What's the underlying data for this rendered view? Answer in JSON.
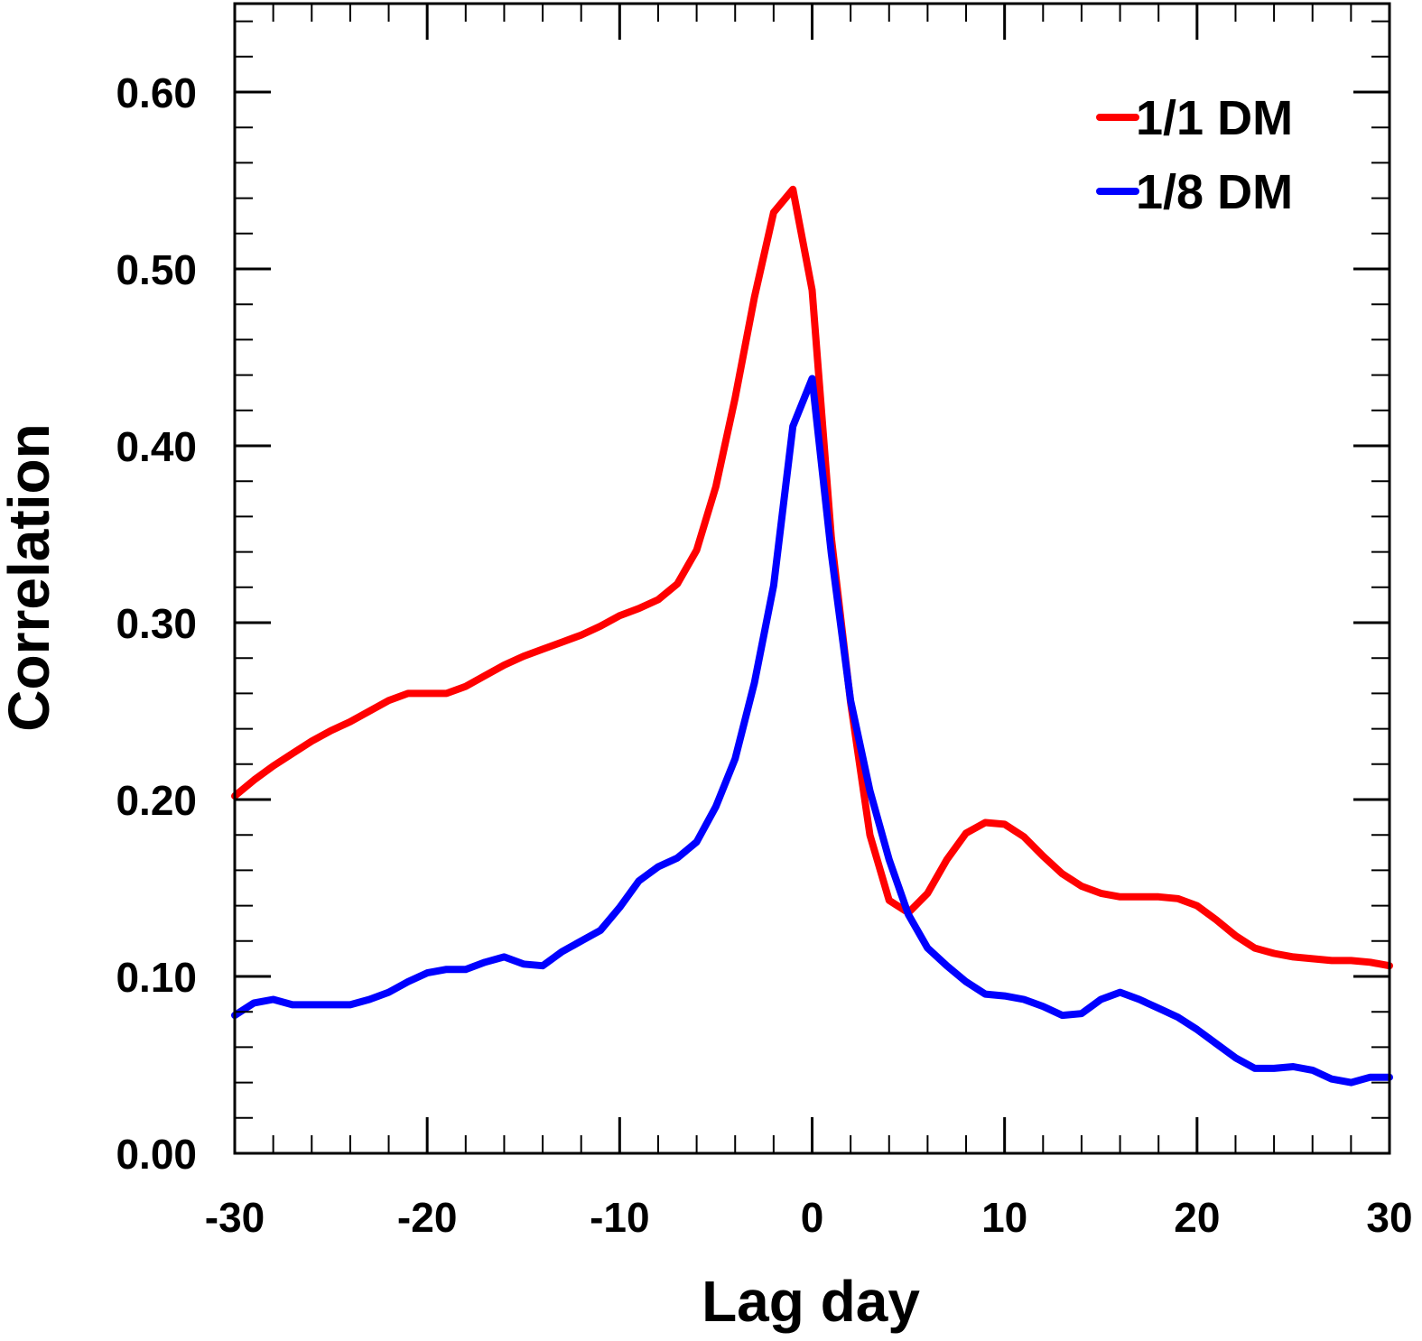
{
  "chart_data": {
    "type": "line",
    "xlabel": "Lag day",
    "ylabel": "Correlation",
    "xlim": [
      -30,
      30
    ],
    "ylim": [
      0,
      0.65
    ],
    "xticks": [
      -30,
      -20,
      -10,
      0,
      10,
      20,
      30
    ],
    "xtick_labels": [
      "-30",
      "-20",
      "-10",
      "0",
      "10",
      "20",
      "30"
    ],
    "yticks": [
      0.0,
      0.1,
      0.2,
      0.3,
      0.4,
      0.5,
      0.6
    ],
    "ytick_labels": [
      "0.00",
      "0.10",
      "0.20",
      "0.30",
      "0.40",
      "0.50",
      "0.60"
    ],
    "grid": false,
    "legend_position": "top-right",
    "x": [
      -30,
      -29,
      -28,
      -27,
      -26,
      -25,
      -24,
      -23,
      -22,
      -21,
      -20,
      -19,
      -18,
      -17,
      -16,
      -15,
      -14,
      -13,
      -12,
      -11,
      -10,
      -9,
      -8,
      -7,
      -6,
      -5,
      -4,
      -3,
      -2,
      -1,
      0,
      1,
      2,
      3,
      4,
      5,
      6,
      7,
      8,
      9,
      10,
      11,
      12,
      13,
      14,
      15,
      16,
      17,
      18,
      19,
      20,
      21,
      22,
      23,
      24,
      25,
      26,
      27,
      28,
      29,
      30
    ],
    "series": [
      {
        "name": "1/1 DM",
        "color": "#ff0000",
        "values": [
          0.202,
          0.211,
          0.219,
          0.226,
          0.233,
          0.239,
          0.244,
          0.25,
          0.256,
          0.26,
          0.26,
          0.26,
          0.264,
          0.27,
          0.276,
          0.281,
          0.285,
          0.289,
          0.293,
          0.298,
          0.304,
          0.308,
          0.313,
          0.322,
          0.341,
          0.377,
          0.427,
          0.484,
          0.532,
          0.545,
          0.488,
          0.348,
          0.255,
          0.18,
          0.143,
          0.136,
          0.147,
          0.166,
          0.181,
          0.187,
          0.186,
          0.179,
          0.168,
          0.158,
          0.151,
          0.147,
          0.145,
          0.145,
          0.145,
          0.144,
          0.14,
          0.132,
          0.123,
          0.116,
          0.113,
          0.111,
          0.11,
          0.109,
          0.109,
          0.108,
          0.106
        ]
      },
      {
        "name": "1/8 DM",
        "color": "#0000ff",
        "values": [
          0.078,
          0.085,
          0.087,
          0.084,
          0.084,
          0.084,
          0.084,
          0.087,
          0.091,
          0.097,
          0.102,
          0.104,
          0.104,
          0.108,
          0.111,
          0.107,
          0.106,
          0.114,
          0.12,
          0.126,
          0.139,
          0.154,
          0.162,
          0.167,
          0.176,
          0.196,
          0.223,
          0.266,
          0.321,
          0.411,
          0.438,
          0.339,
          0.256,
          0.205,
          0.166,
          0.135,
          0.116,
          0.106,
          0.097,
          0.09,
          0.089,
          0.087,
          0.083,
          0.078,
          0.079,
          0.087,
          0.091,
          0.087,
          0.082,
          0.077,
          0.07,
          0.062,
          0.054,
          0.048,
          0.048,
          0.049,
          0.047,
          0.042,
          0.04,
          0.043,
          0.043
        ]
      }
    ]
  }
}
